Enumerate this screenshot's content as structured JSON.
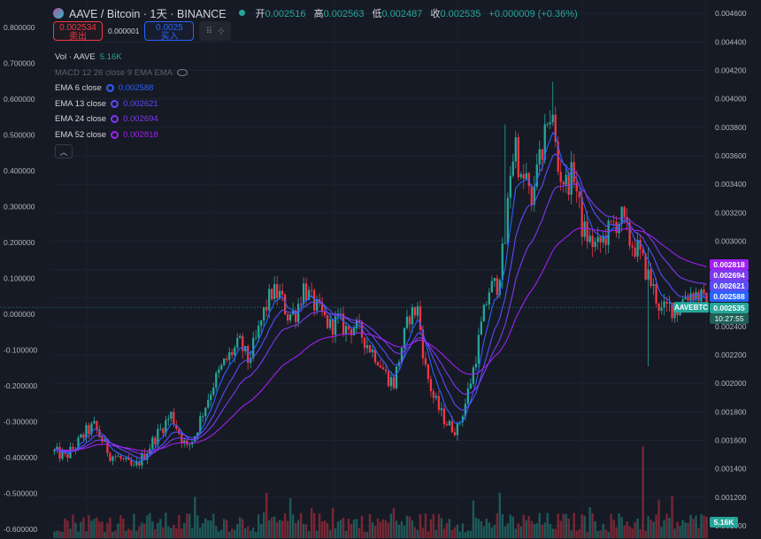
{
  "header": {
    "title": "AAVE / Bitcoin · 1天 · BINANCE",
    "ohlc": [
      {
        "label": "开",
        "value": "0.002516"
      },
      {
        "label": "高",
        "value": "0.002563"
      },
      {
        "label": "低",
        "value": "0.002487"
      },
      {
        "label": "收",
        "value": "0.002535"
      }
    ],
    "change": "+0.000009 (+0.36%)"
  },
  "trade": {
    "sell_price": "0.002534",
    "sell_label": "卖出",
    "spread": "0.000001",
    "buy_price": "0.0025",
    "buy_label": "买入"
  },
  "legend": {
    "vol": {
      "label": "Vol · AAVE",
      "value": "5.16K"
    },
    "macd": {
      "label": "MACD 12 26 close 9 EMA EMA"
    },
    "ema": [
      {
        "label": "EMA 6 close",
        "value": "0.002588",
        "color": "#2962ff"
      },
      {
        "label": "EMA 13 close",
        "value": "0.002621",
        "color": "#5b4cf5"
      },
      {
        "label": "EMA 24 close",
        "value": "0.002694",
        "color": "#7c3aed"
      },
      {
        "label": "EMA 52 close",
        "value": "0.002818",
        "color": "#a020f0"
      }
    ]
  },
  "axes": {
    "right_ticks": [
      "0.004600",
      "0.004400",
      "0.004200",
      "0.004000",
      "0.003800",
      "0.003600",
      "0.003400",
      "0.003200",
      "0.003000",
      "0.002800",
      "0.002600",
      "0.002400",
      "0.002200",
      "0.002000",
      "0.001800",
      "0.001600",
      "0.001400",
      "0.001200",
      "0.001000"
    ],
    "left_ticks": [
      "0.800000",
      "0.700000",
      "0.600000",
      "0.500000",
      "0.400000",
      "0.300000",
      "0.200000",
      "0.100000",
      "0.000000",
      "-0.100000",
      "-0.200000",
      "-0.300000",
      "-0.400000",
      "-0.500000",
      "-0.600000"
    ]
  },
  "price_labels": [
    {
      "text": "0.002818",
      "color": "#a020f0"
    },
    {
      "text": "0.002694",
      "color": "#7c3aed"
    },
    {
      "text": "0.002621",
      "color": "#5b4cf5"
    },
    {
      "text": "0.002588",
      "color": "#2962ff"
    },
    {
      "text": "0.002535",
      "color": "#26a69a"
    }
  ],
  "symbol_tag": "AAVEBTC",
  "countdown": "10:27:55",
  "volume_label": "5.16K",
  "chart_data": {
    "type": "candlestick",
    "symbol": "AAVEBTC",
    "interval": "1D",
    "ylim": [
      0.000975,
      0.00462
    ],
    "last_close": 0.002535,
    "close_trend": [
      [
        0,
        0.00152
      ],
      [
        4,
        0.00148
      ],
      [
        8,
        0.00156
      ],
      [
        12,
        0.00166
      ],
      [
        15,
        0.0017
      ],
      [
        18,
        0.0016
      ],
      [
        21,
        0.0015
      ],
      [
        24,
        0.00148
      ],
      [
        27,
        0.00144
      ],
      [
        30,
        0.0014
      ],
      [
        34,
        0.0015
      ],
      [
        38,
        0.00162
      ],
      [
        41,
        0.0017
      ],
      [
        44,
        0.00178
      ],
      [
        47,
        0.00166
      ],
      [
        50,
        0.00154
      ],
      [
        53,
        0.00164
      ],
      [
        56,
        0.0018
      ],
      [
        60,
        0.002
      ],
      [
        64,
        0.00214
      ],
      [
        67,
        0.00222
      ],
      [
        70,
        0.00228
      ],
      [
        73,
        0.00216
      ],
      [
        76,
        0.0023
      ],
      [
        79,
        0.0025
      ],
      [
        82,
        0.00264
      ],
      [
        85,
        0.00262
      ],
      [
        88,
        0.00248
      ],
      [
        91,
        0.0025
      ],
      [
        94,
        0.00268
      ],
      [
        97,
        0.00258
      ],
      [
        100,
        0.0025
      ],
      [
        104,
        0.0024
      ],
      [
        107,
        0.00244
      ],
      [
        110,
        0.00238
      ],
      [
        113,
        0.0024
      ],
      [
        116,
        0.00234
      ],
      [
        119,
        0.00225
      ],
      [
        122,
        0.00218
      ],
      [
        125,
        0.00206
      ],
      [
        128,
        0.002
      ],
      [
        131,
        0.00226
      ],
      [
        134,
        0.00248
      ],
      [
        137,
        0.00252
      ],
      [
        140,
        0.0021
      ],
      [
        143,
        0.0019
      ],
      [
        146,
        0.00178
      ],
      [
        149,
        0.0017
      ],
      [
        152,
        0.00168
      ],
      [
        155,
        0.00186
      ],
      [
        158,
        0.0021
      ],
      [
        161,
        0.0024
      ],
      [
        164,
        0.00266
      ],
      [
        167,
        0.0027
      ],
      [
        170,
        0.003
      ],
      [
        172,
        0.0035
      ],
      [
        174,
        0.0037
      ],
      [
        176,
        0.0034
      ],
      [
        178,
        0.00345
      ],
      [
        180,
        0.0032
      ],
      [
        182,
        0.0036
      ],
      [
        184,
        0.00352
      ],
      [
        186,
        0.0039
      ],
      [
        188,
        0.00384
      ],
      [
        190,
        0.0035
      ],
      [
        193,
        0.0034
      ],
      [
        196,
        0.00348
      ],
      [
        199,
        0.0031
      ],
      [
        202,
        0.003
      ],
      [
        205,
        0.00296
      ],
      [
        208,
        0.00304
      ],
      [
        211,
        0.00312
      ],
      [
        214,
        0.00316
      ],
      [
        217,
        0.003
      ],
      [
        220,
        0.00294
      ],
      [
        223,
        0.0028
      ],
      [
        226,
        0.00266
      ],
      [
        229,
        0.0025
      ],
      [
        232,
        0.00254
      ],
      [
        235,
        0.00252
      ],
      [
        238,
        0.00262
      ],
      [
        241,
        0.00264
      ],
      [
        244,
        0.0026
      ],
      [
        246,
        0.002535
      ]
    ],
    "ema_series": [
      {
        "name": "EMA 6 close",
        "color": "#2962ff",
        "last": 0.002588
      },
      {
        "name": "EMA 13 close",
        "color": "#5b4cf5",
        "last": 0.002621
      },
      {
        "name": "EMA 24 close",
        "color": "#7c3aed",
        "last": 0.002694
      },
      {
        "name": "EMA 52 close",
        "color": "#a020f0",
        "last": 0.002818
      }
    ],
    "macd_ylim": [
      -0.62,
      0.85
    ],
    "up_color": "#26a69a",
    "down_color": "#f23645"
  }
}
